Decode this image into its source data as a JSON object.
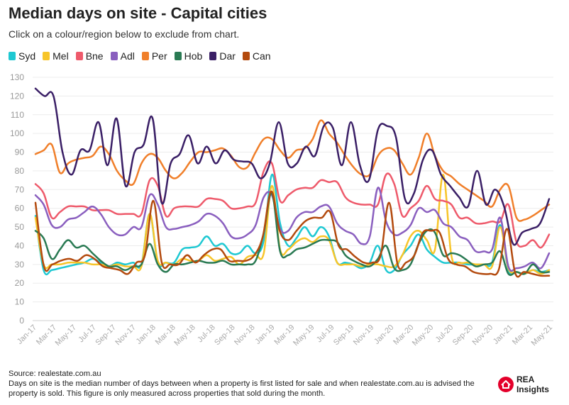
{
  "header": {
    "title": "Median days on site - Capital cities",
    "subtitle": "Click on a colour/region below to exclude from chart."
  },
  "footer": {
    "source": "Source: realestate.com.au",
    "note": "Days on site is the median number of days between when a property is first listed for sale and when realestate.com.au is advised the property is sold. This figure is only measured across properties that sold during the month."
  },
  "logo": {
    "text": "REA Insights",
    "icon": "rea-house-icon",
    "color": "#e4002b"
  },
  "chart_data": {
    "type": "line",
    "title": "Median days on site - Capital cities",
    "xlabel": "",
    "ylabel": "",
    "ylim": [
      0,
      130
    ],
    "yticks": [
      0,
      10,
      20,
      30,
      40,
      50,
      60,
      70,
      80,
      90,
      100,
      110,
      120,
      130
    ],
    "grid": true,
    "legend_position": "top-left",
    "x_tick_labels": [
      "Jan-17",
      "Mar-17",
      "May-17",
      "Jul-17",
      "Sep-17",
      "Nov-17",
      "Jan-18",
      "Mar-18",
      "May-18",
      "Jul-18",
      "Sep-18",
      "Nov-18",
      "Jan-19",
      "Mar-19",
      "May-19",
      "Jul-19",
      "Sep-19",
      "Nov-19",
      "Jan-20",
      "Mar-20",
      "May-20",
      "Jul-20",
      "Sep-20",
      "Nov-20",
      "Jan-21",
      "Mar-21",
      "May-21"
    ],
    "series": [
      {
        "name": "Syd",
        "color": "#1ec8d2",
        "values": [
          56,
          27,
          27,
          28,
          29,
          30,
          31,
          33,
          31,
          29,
          31,
          30,
          31,
          30,
          57,
          31,
          31,
          31,
          38,
          39,
          40,
          45,
          40,
          41,
          36,
          36,
          40,
          36,
          43,
          78,
          52,
          40,
          44,
          50,
          45,
          50,
          45,
          31,
          31,
          30,
          28,
          31,
          40,
          27,
          27,
          35,
          40,
          46,
          38,
          34,
          31,
          31,
          31,
          30,
          30,
          30,
          31,
          51,
          27,
          26,
          25,
          27,
          26,
          27
        ]
      },
      {
        "name": "Mel",
        "color": "#f7c52a",
        "values": [
          55,
          30,
          30,
          30,
          31,
          31,
          31,
          30,
          30,
          29,
          30,
          29,
          29,
          29,
          57,
          32,
          31,
          30,
          33,
          32,
          32,
          35,
          32,
          33,
          34,
          30,
          34,
          35,
          36,
          72,
          38,
          38,
          42,
          44,
          42,
          45,
          43,
          31,
          30,
          30,
          29,
          30,
          30,
          29,
          29,
          35,
          45,
          48,
          43,
          38,
          78,
          35,
          31,
          31,
          30,
          30,
          29,
          50,
          28,
          26,
          25,
          27,
          25,
          27
        ]
      },
      {
        "name": "Bne",
        "color": "#ee5a6b",
        "values": [
          73,
          68,
          55,
          58,
          61,
          61,
          61,
          59,
          59,
          59,
          57,
          57,
          57,
          57,
          75,
          72,
          56,
          60,
          61,
          61,
          61,
          65,
          65,
          64,
          60,
          60,
          61,
          63,
          80,
          84,
          64,
          67,
          70,
          71,
          71,
          75,
          74,
          74,
          66,
          63,
          62,
          62,
          62,
          78,
          73,
          56,
          60,
          64,
          72,
          65,
          64,
          62,
          55,
          55,
          52,
          52,
          53,
          53,
          62,
          42,
          40,
          43,
          39,
          46
        ]
      },
      {
        "name": "Adl",
        "color": "#8a5fbf",
        "values": [
          67,
          62,
          51,
          50,
          54,
          55,
          58,
          61,
          57,
          50,
          46,
          46,
          50,
          50,
          67,
          62,
          50,
          49,
          50,
          51,
          53,
          57,
          56,
          52,
          45,
          44,
          46,
          51,
          66,
          67,
          49,
          48,
          55,
          58,
          58,
          61,
          61,
          52,
          48,
          46,
          41,
          45,
          71,
          53,
          46,
          47,
          51,
          60,
          58,
          59,
          52,
          50,
          45,
          43,
          37,
          37,
          38,
          55,
          29,
          28,
          29,
          31,
          28,
          36
        ]
      },
      {
        "name": "Per",
        "color": "#f07f2a",
        "values": [
          89,
          91,
          94,
          79,
          84,
          86,
          87,
          88,
          93,
          89,
          80,
          75,
          73,
          84,
          89,
          87,
          80,
          76,
          79,
          85,
          90,
          90,
          91,
          92,
          88,
          82,
          82,
          90,
          97,
          97,
          91,
          87,
          91,
          92,
          97,
          107,
          100,
          95,
          88,
          82,
          78,
          78,
          88,
          92,
          91,
          84,
          78,
          87,
          100,
          88,
          80,
          77,
          73,
          70,
          67,
          64,
          61,
          70,
          72,
          55,
          54,
          56,
          59,
          62
        ]
      },
      {
        "name": "Hob",
        "color": "#2a7a53",
        "values": [
          48,
          44,
          33,
          38,
          43,
          39,
          40,
          36,
          32,
          29,
          29,
          27,
          29,
          30,
          41,
          30,
          26,
          30,
          30,
          31,
          32,
          31,
          31,
          32,
          30,
          30,
          30,
          32,
          47,
          68,
          37,
          35,
          38,
          39,
          41,
          43,
          43,
          42,
          35,
          32,
          30,
          29,
          33,
          40,
          28,
          27,
          30,
          41,
          48,
          47,
          35,
          36,
          35,
          32,
          29,
          30,
          31,
          37,
          25,
          26,
          25,
          30,
          26,
          26
        ]
      },
      {
        "name": "Dar",
        "color": "#3a1f66",
        "values": [
          124,
          120,
          120,
          90,
          78,
          91,
          91,
          106,
          83,
          108,
          72,
          90,
          94,
          108,
          63,
          84,
          89,
          99,
          84,
          93,
          84,
          91,
          86,
          85,
          84,
          76,
          84,
          106,
          84,
          84,
          93,
          88,
          104,
          103,
          83,
          106,
          83,
          75,
          102,
          104,
          98,
          65,
          68,
          86,
          91,
          78,
          72,
          66,
          61,
          80,
          62,
          70,
          61,
          41,
          47,
          49,
          52,
          65
        ]
      },
      {
        "name": "Can",
        "color": "#b34a0e",
        "values": [
          63,
          29,
          30,
          32,
          33,
          32,
          35,
          33,
          29,
          28,
          27,
          25,
          31,
          35,
          64,
          31,
          30,
          30,
          35,
          31,
          35,
          38,
          38,
          32,
          32,
          32,
          35,
          45,
          69,
          48,
          43,
          48,
          53,
          55,
          55,
          58,
          40,
          38,
          34,
          31,
          31,
          35,
          63,
          30,
          31,
          35,
          47,
          48,
          47,
          33,
          30,
          29,
          26,
          25,
          25,
          27,
          49,
          25,
          26,
          25,
          24,
          24
        ]
      }
    ]
  }
}
